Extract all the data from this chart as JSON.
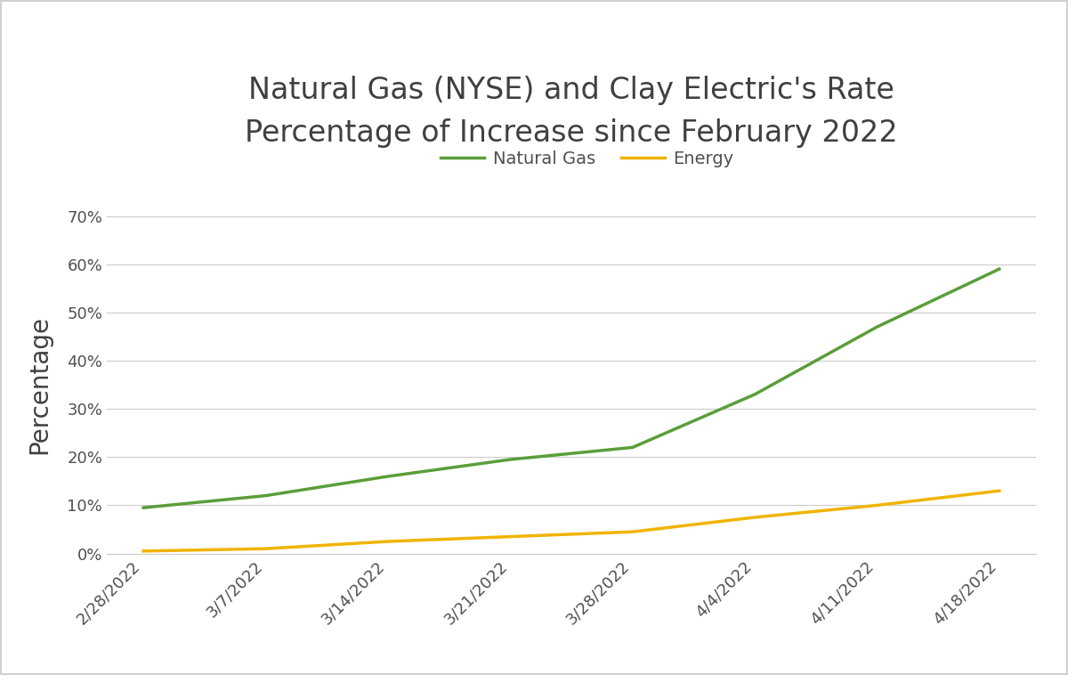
{
  "title": "Natural Gas (NYSE) and Clay Electric's Rate\nPercentage of Increase since February 2022",
  "ylabel": "Percentage",
  "x_labels": [
    "2/28/2022",
    "3/7/2022",
    "3/14/2022",
    "3/21/2022",
    "3/28/2022",
    "4/4/2022",
    "4/11/2022",
    "4/18/2022"
  ],
  "natural_gas": [
    9.5,
    12.0,
    16.0,
    19.5,
    22.0,
    33.0,
    47.0,
    59.0
  ],
  "energy": [
    0.5,
    1.0,
    2.5,
    3.5,
    4.5,
    7.5,
    10.0,
    13.0
  ],
  "natural_gas_color": "#5a9e3a",
  "energy_color": "#f0b400",
  "natural_gas_label": "Natural Gas",
  "energy_label": "Energy",
  "ylim": [
    0,
    70
  ],
  "yticks": [
    0,
    10,
    20,
    30,
    40,
    50,
    60,
    70
  ],
  "title_fontsize": 24,
  "ylabel_fontsize": 20,
  "tick_fontsize": 13,
  "legend_fontsize": 14,
  "line_width": 2.5,
  "background_color": "#ffffff",
  "plot_bg_color": "#ffffff",
  "grid_color": "#cccccc",
  "title_color": "#404040",
  "axis_label_color": "#404040",
  "tick_color": "#505050",
  "outer_box_color": "#d0d0d0"
}
